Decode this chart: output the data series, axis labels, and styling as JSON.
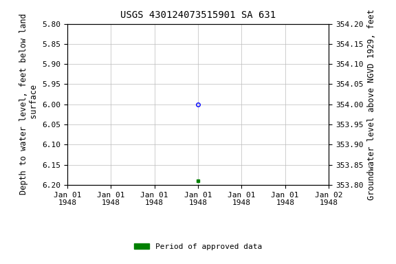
{
  "title": "USGS 430124073515901 SA 631",
  "ylabel_left": "Depth to water level, feet below land\n surface",
  "ylabel_right": "Groundwater level above NGVD 1929, feet",
  "ylim_left": [
    5.8,
    6.2
  ],
  "ylim_right": [
    354.2,
    353.8
  ],
  "yticks_left": [
    5.8,
    5.85,
    5.9,
    5.95,
    6.0,
    6.05,
    6.1,
    6.15,
    6.2
  ],
  "yticks_right": [
    354.2,
    354.15,
    354.1,
    354.05,
    354.0,
    353.95,
    353.9,
    353.85,
    353.8
  ],
  "xlim": [
    0,
    6
  ],
  "xtick_positions": [
    0,
    1,
    2,
    3,
    4,
    5,
    6
  ],
  "xtick_labels": [
    "Jan 01\n1948",
    "Jan 01\n1948",
    "Jan 01\n1948",
    "Jan 01\n1948",
    "Jan 01\n1948",
    "Jan 01\n1948",
    "Jan 02\n1948"
  ],
  "blue_point_x": 3.0,
  "blue_point_y": 6.0,
  "green_point_x": 3.0,
  "green_point_y": 6.19,
  "legend_label": "Period of approved data",
  "legend_color": "#008000",
  "background_color": "#ffffff",
  "grid_color": "#bbbbbb",
  "title_fontsize": 10,
  "axis_fontsize": 8.5,
  "tick_fontsize": 8
}
